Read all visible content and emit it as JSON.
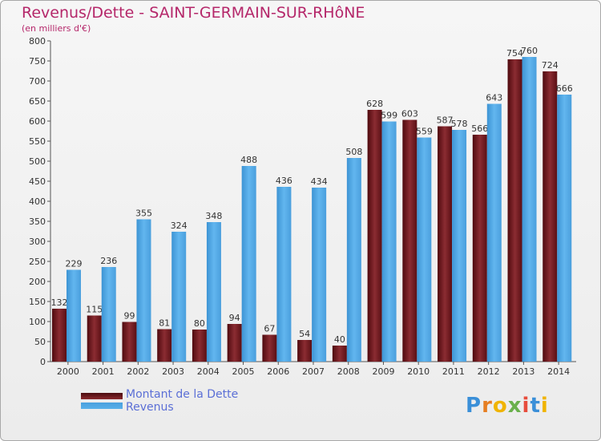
{
  "header": {
    "title": "Revenus/Dette - SAINT-GERMAIN-SUR-RHôNE",
    "subtitle": "(en milliers d'€)"
  },
  "logo": {
    "text": "Proxiti"
  },
  "colors": {
    "debt": "#6b1218",
    "revenue": "#4ea6e4",
    "title": "#b5276a",
    "legend_text": "#5b6fd6"
  },
  "chart_data": {
    "type": "bar",
    "title": "Revenus/Dette - SAINT-GERMAIN-SUR-RHôNE",
    "subtitle": "(en milliers d'€)",
    "categories": [
      "2000",
      "2001",
      "2002",
      "2003",
      "2004",
      "2005",
      "2006",
      "2007",
      "2008",
      "2009",
      "2010",
      "2011",
      "2012",
      "2013",
      "2014"
    ],
    "series": [
      {
        "name": "Montant de la Dette",
        "values": [
          132,
          115,
          99,
          81,
          80,
          94,
          67,
          54,
          40,
          628,
          603,
          587,
          566,
          754,
          724
        ]
      },
      {
        "name": "Revenus",
        "values": [
          229,
          236,
          355,
          324,
          348,
          488,
          436,
          434,
          508,
          599,
          559,
          578,
          643,
          760,
          666
        ]
      }
    ],
    "ylim": [
      0,
      800
    ],
    "yticks": [
      0,
      50,
      100,
      150,
      200,
      250,
      300,
      350,
      400,
      450,
      500,
      550,
      600,
      650,
      700,
      750,
      800
    ],
    "grid": false,
    "legend": "bottom-left"
  }
}
